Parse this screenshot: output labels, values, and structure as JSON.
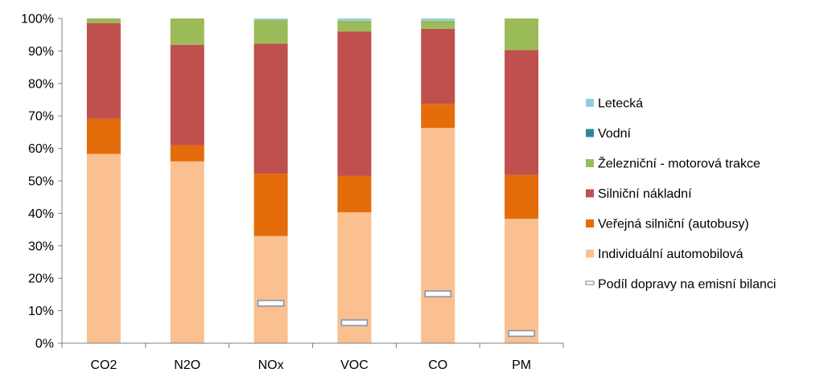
{
  "chart_data": {
    "type": "bar",
    "stacked": true,
    "percent": true,
    "title": "",
    "xlabel": "",
    "ylabel": "",
    "ylim": [
      0,
      100
    ],
    "yticks": [
      "0%",
      "10%",
      "20%",
      "30%",
      "40%",
      "50%",
      "60%",
      "70%",
      "80%",
      "90%",
      "100%"
    ],
    "grid": false,
    "legend": "right",
    "categories": [
      "CO2",
      "N2O",
      "NOx",
      "VOC",
      "CO",
      "PM"
    ],
    "series": [
      {
        "name": "Individuální automobilová",
        "color": "#FAC090",
        "values": [
          58.3,
          56.0,
          33.0,
          40.3,
          66.3,
          38.3
        ]
      },
      {
        "name": "Veřejná silniční (autobusy)",
        "color": "#E46C0A",
        "values": [
          10.8,
          5.0,
          19.2,
          11.2,
          7.4,
          13.5
        ]
      },
      {
        "name": "Silniční nákladní",
        "color": "#C0504D",
        "values": [
          29.5,
          30.9,
          40.0,
          44.5,
          23.1,
          38.5
        ]
      },
      {
        "name": "Železniční - motorová trakce",
        "color": "#9BBB59",
        "values": [
          1.4,
          8.1,
          7.3,
          3.3,
          2.5,
          9.7
        ]
      },
      {
        "name": "Vodní",
        "color": "#31859C",
        "values": [
          0,
          0,
          0,
          0,
          0,
          0
        ]
      },
      {
        "name": "Letecká",
        "color": "#93CDDD",
        "values": [
          0,
          0,
          0.5,
          0.7,
          0.7,
          0
        ]
      }
    ],
    "markers": {
      "name": "Podíl dopravy na emisní bilanci",
      "color": "#ffffff",
      "border": "#8496B0",
      "values": [
        null,
        null,
        12.3,
        6.3,
        15.2,
        3.0
      ]
    },
    "legend_order": [
      "Letecká",
      "Vodní",
      "Železniční - motorová trakce",
      "Silniční nákladní",
      "Veřejná silniční (autobusy)",
      "Individuální automobilová",
      "Podíl dopravy na emisní bilanci"
    ]
  }
}
